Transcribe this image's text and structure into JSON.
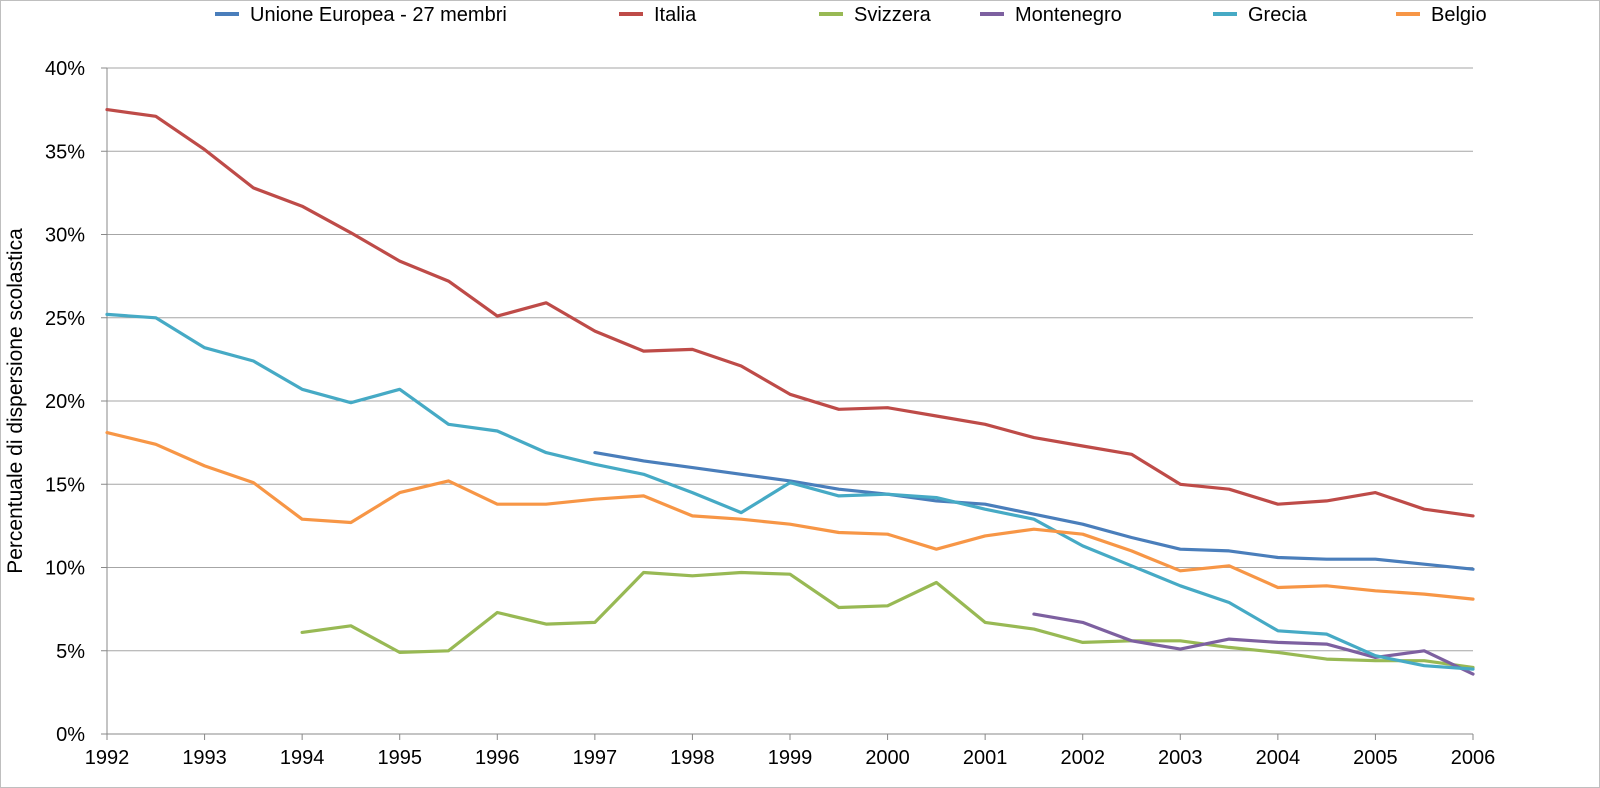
{
  "chart_data": {
    "type": "line",
    "title": "",
    "xlabel": "",
    "ylabel": "Percentuale di dispersione scolastica",
    "x": [
      1992,
      1992.5,
      1993,
      1993.5,
      1994,
      1994.5,
      1995,
      1995.5,
      1996,
      1996.5,
      1997,
      1997.5,
      1998,
      1998.5,
      1999,
      1999.5,
      2000,
      2000.5,
      2001,
      2001.5,
      2002,
      2002.5,
      2003,
      2003.5,
      2004,
      2004.5,
      2005,
      2005.5,
      2006
    ],
    "x_tick_labels": [
      "1992",
      "1993",
      "1994",
      "1995",
      "1996",
      "1997",
      "1998",
      "1999",
      "2000",
      "2001",
      "2002",
      "2003",
      "2004",
      "2005",
      "2006"
    ],
    "y_tick_labels": [
      "0%",
      "5%",
      "10%",
      "15%",
      "20%",
      "25%",
      "30%",
      "35%",
      "40%"
    ],
    "xlim": [
      1992,
      2006
    ],
    "ylim": [
      0,
      40
    ],
    "y_unit": "%",
    "grid": "horizontal",
    "legend_position": "top",
    "series": [
      {
        "name": "Unione Europea - 27 membri",
        "color": "#4a7ebb",
        "values": [
          null,
          null,
          null,
          null,
          null,
          null,
          null,
          null,
          null,
          null,
          16.9,
          16.4,
          16.0,
          15.6,
          15.2,
          14.7,
          14.4,
          14.0,
          13.8,
          13.2,
          12.6,
          11.8,
          11.1,
          11.0,
          10.6,
          10.5,
          10.5,
          10.2,
          9.9
        ]
      },
      {
        "name": "Italia",
        "color": "#be4b48",
        "values": [
          37.5,
          37.1,
          35.1,
          32.8,
          31.7,
          30.1,
          28.4,
          27.2,
          25.1,
          25.9,
          24.2,
          23.0,
          23.1,
          22.1,
          20.4,
          19.5,
          19.6,
          19.1,
          18.6,
          17.8,
          17.3,
          16.8,
          15.0,
          14.7,
          13.8,
          14.0,
          14.5,
          13.5,
          13.1
        ]
      },
      {
        "name": "Svizzera",
        "color": "#98b954",
        "values": [
          null,
          null,
          null,
          null,
          6.1,
          6.5,
          4.9,
          5.0,
          7.3,
          6.6,
          6.7,
          9.7,
          9.5,
          9.7,
          9.6,
          7.6,
          7.7,
          9.1,
          6.7,
          6.3,
          5.5,
          5.6,
          5.6,
          5.2,
          4.9,
          4.5,
          4.4,
          4.4,
          4.0
        ]
      },
      {
        "name": "Montenegro",
        "color": "#7d60a0",
        "values": [
          null,
          null,
          null,
          null,
          null,
          null,
          null,
          null,
          null,
          null,
          null,
          null,
          null,
          null,
          null,
          null,
          null,
          null,
          null,
          7.2,
          6.7,
          5.6,
          5.1,
          5.7,
          5.5,
          5.4,
          4.6,
          5.0,
          3.6
        ]
      },
      {
        "name": "Grecia",
        "color": "#46aac5",
        "values": [
          25.2,
          25.0,
          23.2,
          22.4,
          20.7,
          19.9,
          20.7,
          18.6,
          18.2,
          16.9,
          16.2,
          15.6,
          14.5,
          13.3,
          15.1,
          14.3,
          14.4,
          14.2,
          13.5,
          12.9,
          11.3,
          10.1,
          8.9,
          7.9,
          6.2,
          6.0,
          4.7,
          4.1,
          3.9
        ]
      },
      {
        "name": "Belgio",
        "color": "#f79646",
        "values": [
          18.1,
          17.4,
          16.1,
          15.1,
          12.9,
          12.7,
          14.5,
          15.2,
          13.8,
          13.8,
          14.1,
          14.3,
          13.1,
          12.9,
          12.6,
          12.1,
          12.0,
          11.1,
          11.9,
          12.3,
          12.0,
          11.0,
          9.8,
          10.1,
          8.8,
          8.9,
          8.6,
          8.4,
          8.1
        ]
      }
    ]
  }
}
